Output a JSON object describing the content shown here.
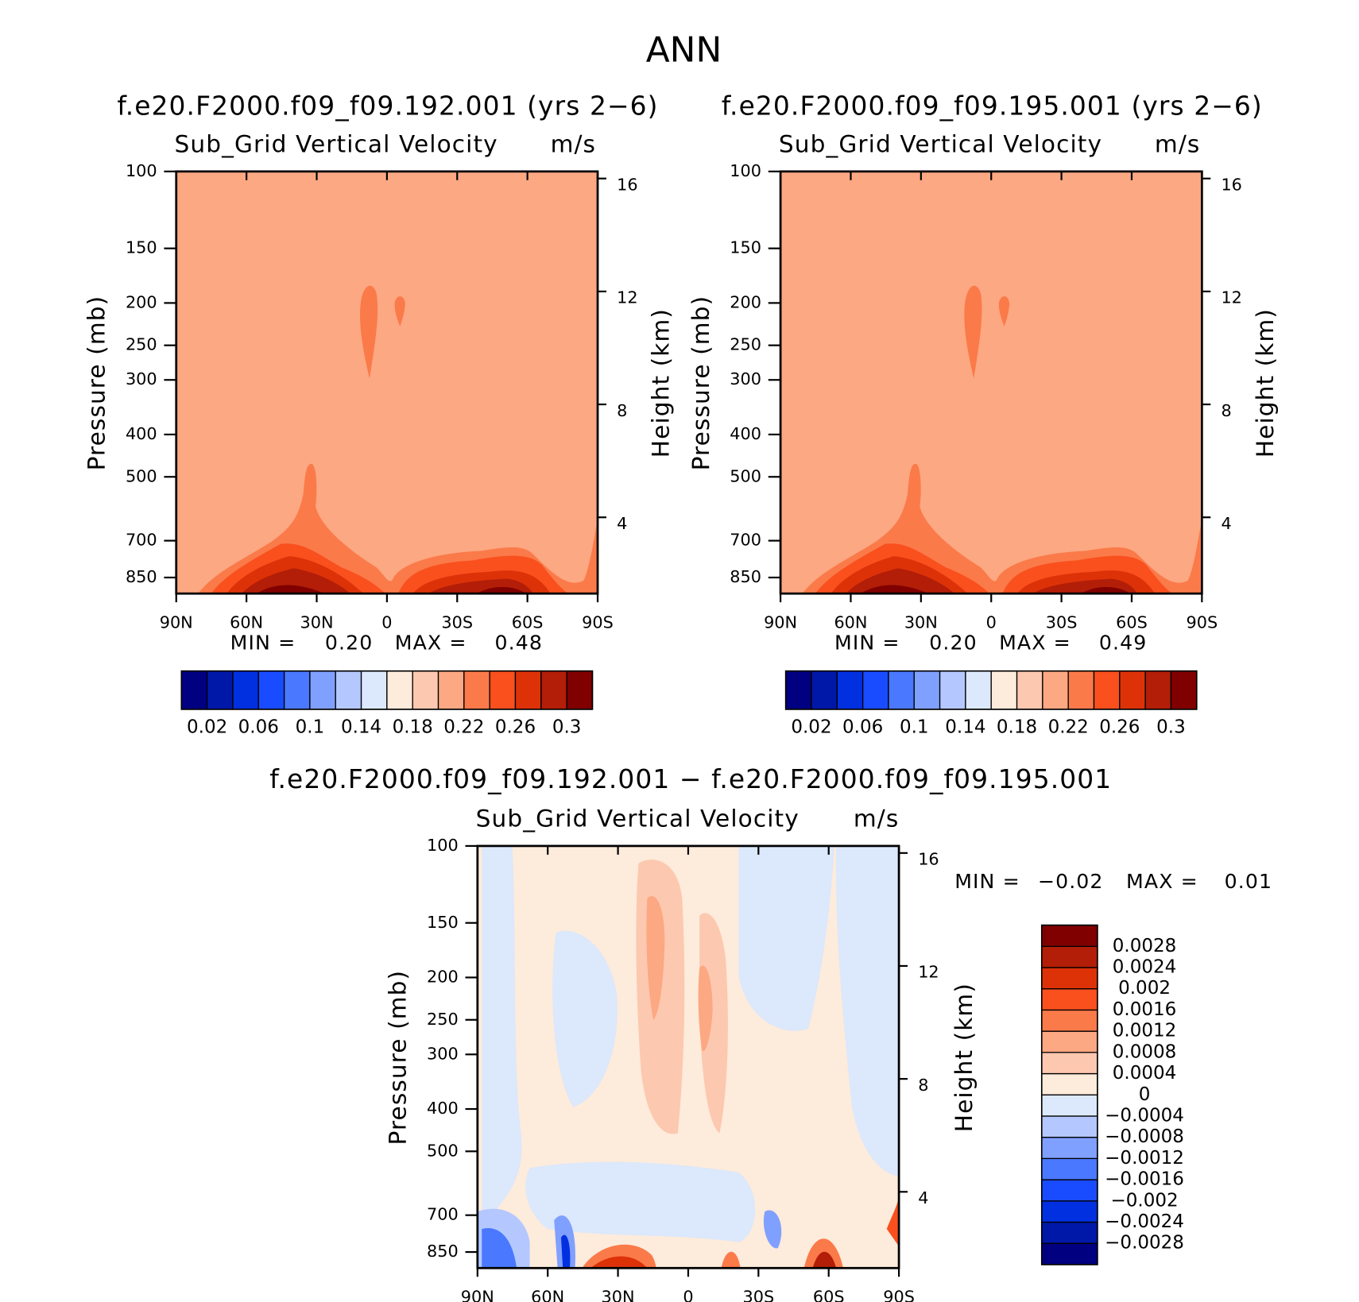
{
  "title": "ANN",
  "chart_data": [
    {
      "type": "contour",
      "title": "f.e20.F2000.f09_f09.192.001 (yrs 2−6)",
      "subtitle": "Sub_Grid Vertical Velocity",
      "units": "m/s",
      "ylabel": "Pressure (mb)",
      "y2label": "Height (km)",
      "ylog": true,
      "xlim": [
        90,
        -90
      ],
      "xticks": [
        {
          "value": 90,
          "label": "90N"
        },
        {
          "value": 60,
          "label": "60N"
        },
        {
          "value": 30,
          "label": "30N"
        },
        0,
        {
          "value": -30,
          "label": "30S"
        },
        {
          "value": -60,
          "label": "60S"
        },
        {
          "value": -90,
          "label": "90S"
        }
      ],
      "ylim": [
        925,
        100
      ],
      "yticks": [
        100,
        150,
        200,
        250,
        300,
        400,
        500,
        700,
        850
      ],
      "y2lim": [
        1.3,
        16.25
      ],
      "y2ticks": [
        4,
        8,
        12,
        16
      ],
      "min_label": "MIN =",
      "min": {
        "value": 0.2,
        "label": "0.20"
      },
      "max_label": "MAX =",
      "max": 0.48,
      "colorbar": {
        "lim": [
          0,
          0.32
        ],
        "ticks": [
          0.02,
          0.06,
          0.1,
          0.14,
          0.18,
          0.22,
          0.26,
          0.3
        ],
        "colors": [
          "#000080",
          "#0018a8",
          "#0030e0",
          "#1a4cff",
          "#4a78ff",
          "#80a0ff",
          "#b4c8ff",
          "#dce8fb",
          "#fdebdb",
          "#fdc8b0",
          "#fca882",
          "#fb7a4a",
          "#f9501e",
          "#dd3208",
          "#b21e08",
          "#800000"
        ]
      }
    },
    {
      "type": "contour",
      "title": "f.e20.F2000.f09_f09.195.001 (yrs 2−6)",
      "subtitle": "Sub_Grid Vertical Velocity",
      "units": "m/s",
      "ylabel": "Pressure (mb)",
      "y2label": "Height (km)",
      "ylog": true,
      "xlim": [
        90,
        -90
      ],
      "xticks": [
        {
          "value": 90,
          "label": "90N"
        },
        {
          "value": 60,
          "label": "60N"
        },
        {
          "value": 30,
          "label": "30N"
        },
        0,
        {
          "value": -30,
          "label": "30S"
        },
        {
          "value": -60,
          "label": "60S"
        },
        {
          "value": -90,
          "label": "90S"
        }
      ],
      "ylim": [
        925,
        100
      ],
      "yticks": [
        100,
        150,
        200,
        250,
        300,
        400,
        500,
        700,
        850
      ],
      "y2lim": [
        1.3,
        16.25
      ],
      "y2ticks": [
        4,
        8,
        12,
        16
      ],
      "min_label": "MIN =",
      "min": {
        "value": 0.2,
        "label": "0.20"
      },
      "max_label": "MAX =",
      "max": 0.49,
      "colorbar": {
        "lim": [
          0,
          0.32
        ],
        "ticks": [
          0.02,
          0.06,
          0.1,
          0.14,
          0.18,
          0.22,
          0.26,
          0.3
        ],
        "colors": [
          "#000080",
          "#0018a8",
          "#0030e0",
          "#1a4cff",
          "#4a78ff",
          "#80a0ff",
          "#b4c8ff",
          "#dce8fb",
          "#fdebdb",
          "#fdc8b0",
          "#fca882",
          "#fb7a4a",
          "#f9501e",
          "#dd3208",
          "#b21e08",
          "#800000"
        ]
      }
    },
    {
      "type": "contour",
      "title": "f.e20.F2000.f09_f09.192.001 − f.e20.F2000.f09_f09.195.001",
      "subtitle": "Sub_Grid Vertical Velocity",
      "units": "m/s",
      "ylabel": "Pressure (mb)",
      "y2label": "Height (km)",
      "ylog": true,
      "xlim": [
        90,
        -90
      ],
      "xticks": [
        {
          "value": 90,
          "label": "90N"
        },
        {
          "value": 60,
          "label": "60N"
        },
        {
          "value": 30,
          "label": "30N"
        },
        0,
        {
          "value": -30,
          "label": "30S"
        },
        {
          "value": -60,
          "label": "60S"
        },
        {
          "value": -90,
          "label": "90S"
        }
      ],
      "ylim": [
        925,
        100
      ],
      "yticks": [
        100,
        150,
        200,
        250,
        300,
        400,
        500,
        700,
        850
      ],
      "y2lim": [
        1.3,
        16.25
      ],
      "y2ticks": [
        4,
        8,
        12,
        16
      ],
      "min_label": "MIN =",
      "min": {
        "value": -0.02,
        "label": "−0.02"
      },
      "max_label": "MAX =",
      "max": 0.01,
      "colorbar": {
        "lim": [
          -0.0032,
          0.0032
        ],
        "ticks": [
          0.0028,
          0.0024,
          0.002,
          0.0016,
          0.0012,
          0.0008,
          0.0004,
          0,
          {
            "value": -0.0004,
            "label": "−0.0004"
          },
          {
            "value": -0.0008,
            "label": "−0.0008"
          },
          {
            "value": -0.0012,
            "label": "−0.0012"
          },
          {
            "value": -0.0016,
            "label": "−0.0016"
          },
          {
            "value": -0.002,
            "label": "−0.002"
          },
          {
            "value": -0.0024,
            "label": "−0.0024"
          },
          {
            "value": -0.0028,
            "label": "−0.0028"
          }
        ],
        "colors": [
          "#000080",
          "#0018a8",
          "#0030e0",
          "#1a4cff",
          "#4a78ff",
          "#80a0ff",
          "#b4c8ff",
          "#dce8fb",
          "#fdebdb",
          "#fdc8b0",
          "#fca882",
          "#fb7a4a",
          "#f9501e",
          "#dd3208",
          "#b21e08",
          "#800000"
        ]
      }
    }
  ]
}
